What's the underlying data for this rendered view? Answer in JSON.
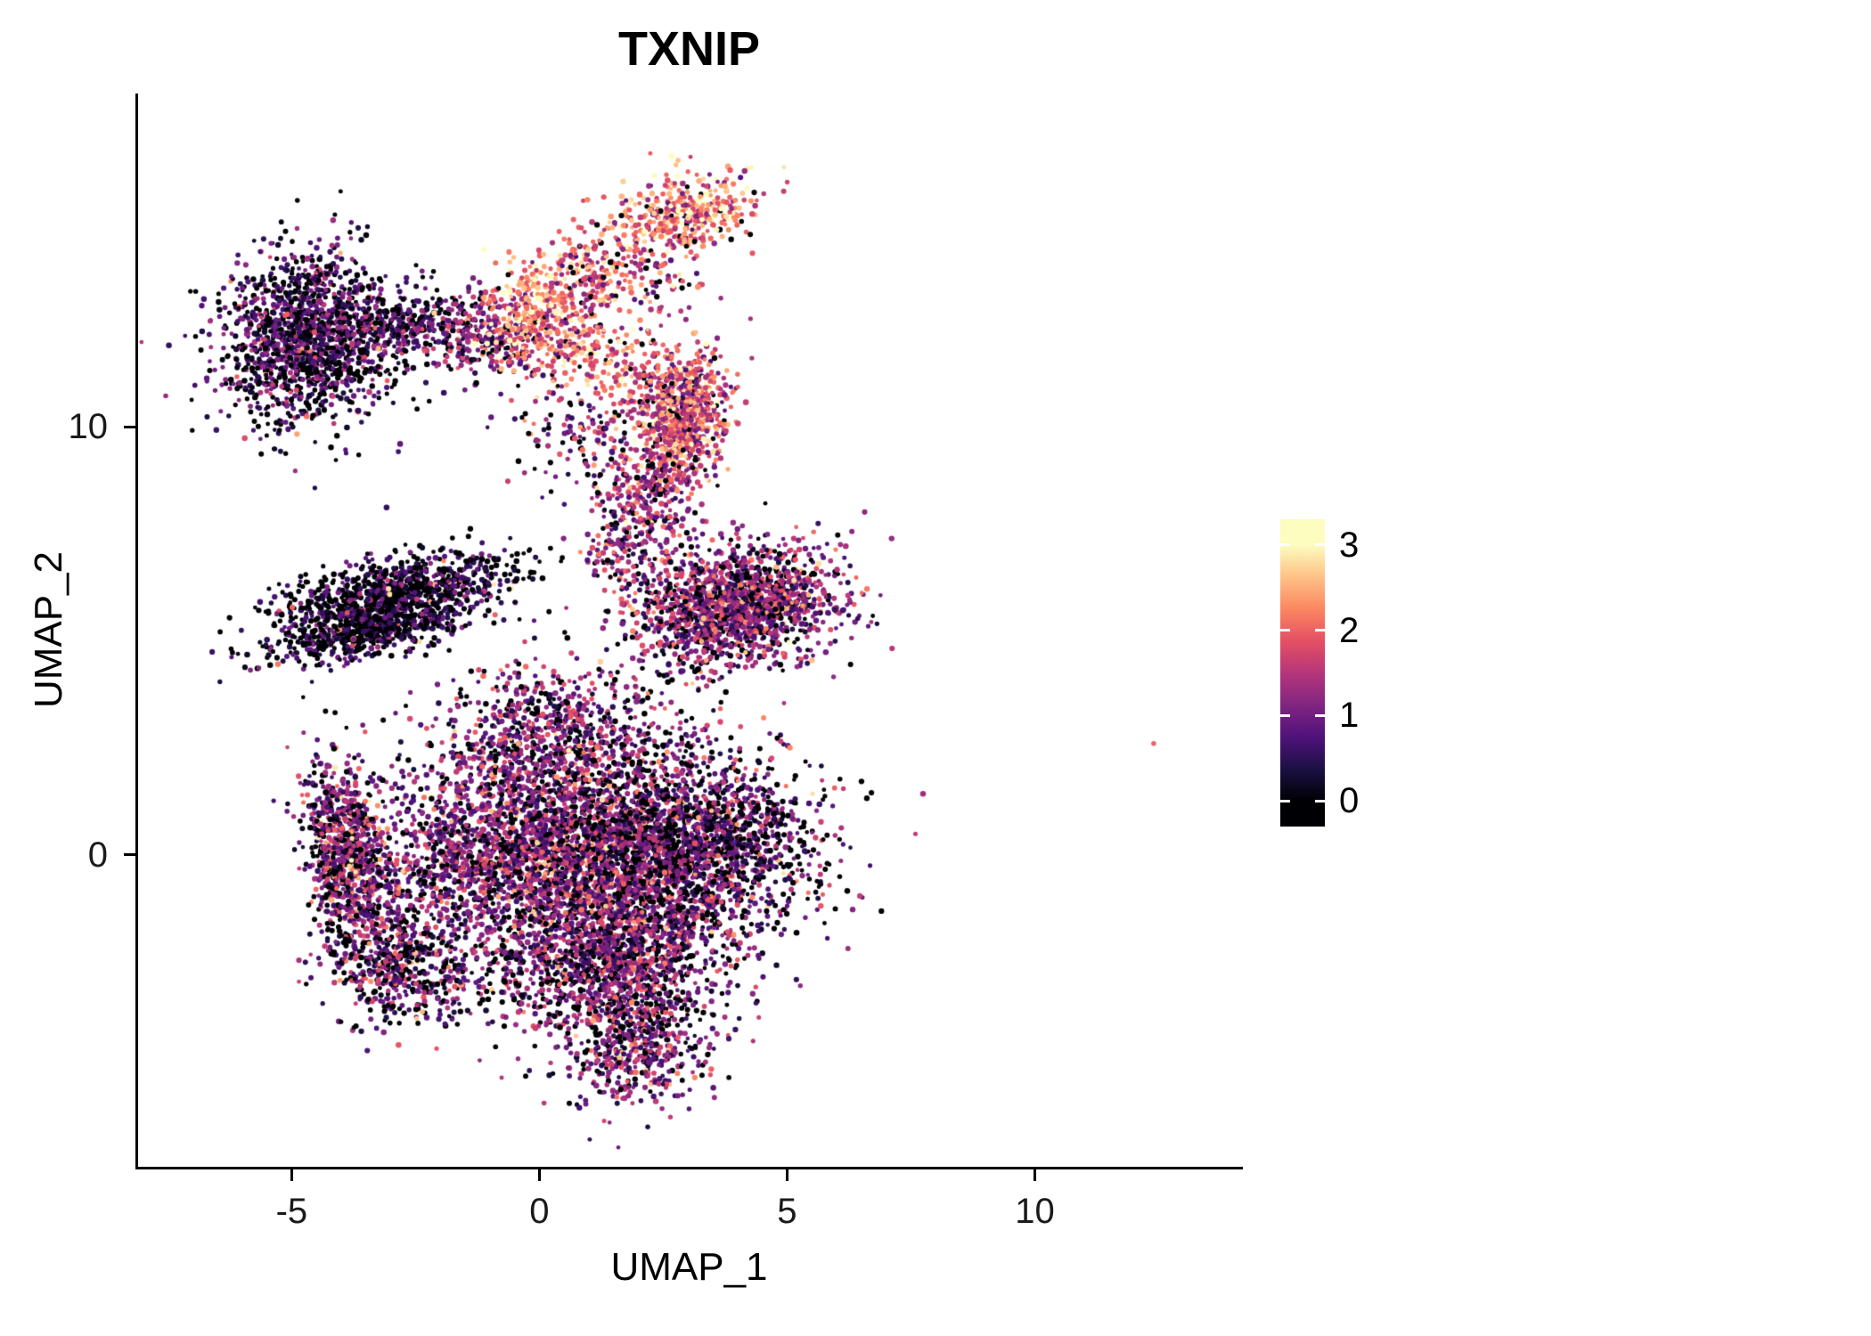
{
  "chart_data": {
    "type": "scatter",
    "title": "TXNIP",
    "xlabel": "UMAP_1",
    "ylabel": "UMAP_2",
    "xlim": [
      -8.1,
      14.2
    ],
    "ylim": [
      -7.3,
      17.8
    ],
    "x_ticks": [
      -5,
      0,
      5,
      10
    ],
    "y_ticks": [
      0,
      10
    ],
    "grid": false,
    "legend_position": "right",
    "point_radius_px": 2.8,
    "sparkle_frac": 0.012,
    "colorbar": {
      "label_values": [
        0,
        1,
        2,
        3
      ],
      "value_min": 0,
      "value_max": 3,
      "bar_value_pad": 0.3,
      "palette_name": "magma",
      "palette": [
        "#000004",
        "#1c1044",
        "#4f127b",
        "#812581",
        "#b5367a",
        "#e55064",
        "#fb8761",
        "#fec287",
        "#fcfdbf"
      ]
    },
    "clusters": [
      {
        "name": "upper-left-blob",
        "cx": -4.7,
        "cy": 12.1,
        "rx": 0.9,
        "ry": 1.0,
        "rot": -15,
        "n": 1500,
        "zero_frac": 0.28,
        "mean": 0.75,
        "sd": 0.55
      },
      {
        "name": "upper-left-trail",
        "cx": -2.6,
        "cy": 12.4,
        "rx": 0.7,
        "ry": 0.35,
        "rot": 5,
        "n": 260,
        "zero_frac": 0.3,
        "mean": 0.7,
        "sd": 0.5
      },
      {
        "name": "top-bridge-left",
        "cx": -1.1,
        "cy": 12.1,
        "rx": 0.5,
        "ry": 0.5,
        "rot": 0,
        "n": 240,
        "zero_frac": 0.15,
        "mean": 1.2,
        "sd": 0.6
      },
      {
        "name": "top-bridge-bright",
        "cx": 0.0,
        "cy": 12.5,
        "rx": 0.55,
        "ry": 0.65,
        "rot": 20,
        "n": 430,
        "zero_frac": 0.03,
        "mean": 2.1,
        "sd": 0.55
      },
      {
        "name": "top-spur",
        "cx": 1.0,
        "cy": 13.7,
        "rx": 0.45,
        "ry": 0.5,
        "rot": -30,
        "n": 160,
        "zero_frac": 0.05,
        "mean": 1.9,
        "sd": 0.6
      },
      {
        "name": "top-cluster",
        "cx": 2.9,
        "cy": 15.0,
        "rx": 0.7,
        "ry": 0.45,
        "rot": 8,
        "n": 380,
        "zero_frac": 0.06,
        "mean": 2.1,
        "sd": 0.6
      },
      {
        "name": "top-scatter-mid",
        "cx": 2.1,
        "cy": 13.4,
        "rx": 0.65,
        "ry": 0.6,
        "rot": 0,
        "n": 120,
        "zero_frac": 0.1,
        "mean": 1.7,
        "sd": 0.7
      },
      {
        "name": "bridge-diagonal",
        "cx": 1.6,
        "cy": 11.4,
        "rx": 0.5,
        "ry": 0.7,
        "rot": 35,
        "n": 180,
        "zero_frac": 0.06,
        "mean": 1.9,
        "sd": 0.55
      },
      {
        "name": "mid-sparse",
        "cx": 0.8,
        "cy": 9.8,
        "rx": 0.7,
        "ry": 0.8,
        "rot": -40,
        "n": 120,
        "zero_frac": 0.25,
        "mean": 1.2,
        "sd": 0.7
      },
      {
        "name": "right-upper-blob",
        "cx": 2.9,
        "cy": 10.2,
        "rx": 0.45,
        "ry": 0.75,
        "rot": -10,
        "n": 850,
        "zero_frac": 0.06,
        "mean": 1.8,
        "sd": 0.6
      },
      {
        "name": "right-upper-tail",
        "cx": 2.1,
        "cy": 8.3,
        "rx": 0.45,
        "ry": 0.7,
        "rot": 12,
        "n": 280,
        "zero_frac": 0.12,
        "mean": 1.4,
        "sd": 0.6
      },
      {
        "name": "left-band-upper",
        "cx": -2.9,
        "cy": 6.1,
        "rx": 1.2,
        "ry": 0.4,
        "rot": 14,
        "n": 1000,
        "zero_frac": 0.38,
        "mean": 0.5,
        "sd": 0.45
      },
      {
        "name": "left-band-lower",
        "cx": -3.4,
        "cy": 5.2,
        "rx": 1.1,
        "ry": 0.3,
        "rot": 14,
        "n": 520,
        "zero_frac": 0.38,
        "mean": 0.5,
        "sd": 0.45
      },
      {
        "name": "right-mid-cluster",
        "cx": 4.0,
        "cy": 5.8,
        "rx": 1.1,
        "ry": 0.7,
        "rot": 12,
        "n": 1600,
        "zero_frac": 0.15,
        "mean": 1.15,
        "sd": 0.6
      },
      {
        "name": "neck",
        "cx": 1.7,
        "cy": 7.1,
        "rx": 0.45,
        "ry": 0.5,
        "rot": 0,
        "n": 100,
        "zero_frac": 0.15,
        "mean": 1.3,
        "sd": 0.6
      },
      {
        "name": "center-upper",
        "cx": 0.3,
        "cy": 2.7,
        "rx": 1.2,
        "ry": 0.9,
        "rot": 0,
        "n": 800,
        "zero_frac": 0.2,
        "mean": 1.0,
        "sd": 0.6
      },
      {
        "name": "center-core",
        "cx": 0.6,
        "cy": 0.0,
        "rx": 1.7,
        "ry": 1.2,
        "rot": 0,
        "n": 3000,
        "zero_frac": 0.16,
        "mean": 1.15,
        "sd": 0.6
      },
      {
        "name": "center-right-lobe",
        "cx": 3.3,
        "cy": 0.2,
        "rx": 1.2,
        "ry": 1.1,
        "rot": 0,
        "n": 1500,
        "zero_frac": 0.28,
        "mean": 0.9,
        "sd": 0.6
      },
      {
        "name": "center-lower",
        "cx": 1.3,
        "cy": -2.6,
        "rx": 1.2,
        "ry": 1.0,
        "rot": 0,
        "n": 1300,
        "zero_frac": 0.2,
        "mean": 1.05,
        "sd": 0.6
      },
      {
        "name": "bottom-tail",
        "cx": 2.0,
        "cy": -4.5,
        "rx": 0.7,
        "ry": 0.7,
        "rot": 0,
        "n": 420,
        "zero_frac": 0.18,
        "mean": 1.0,
        "sd": 0.55
      },
      {
        "name": "left-arm",
        "cx": -3.85,
        "cy": 0.1,
        "rx": 0.42,
        "ry": 1.1,
        "rot": 10,
        "n": 850,
        "zero_frac": 0.22,
        "mean": 1.1,
        "sd": 0.65
      },
      {
        "name": "left-arm-hook",
        "cx": -2.9,
        "cy": -2.6,
        "rx": 0.8,
        "ry": 0.6,
        "rot": -35,
        "n": 500,
        "zero_frac": 0.25,
        "mean": 0.95,
        "sd": 0.6
      },
      {
        "name": "left-connector",
        "cx": -1.9,
        "cy": -0.4,
        "rx": 0.7,
        "ry": 1.0,
        "rot": 0,
        "n": 280,
        "zero_frac": 0.25,
        "mean": 0.9,
        "sd": 0.55
      }
    ],
    "outliers": [
      {
        "x": 12.4,
        "y": 2.6,
        "value": 2.0
      }
    ]
  }
}
